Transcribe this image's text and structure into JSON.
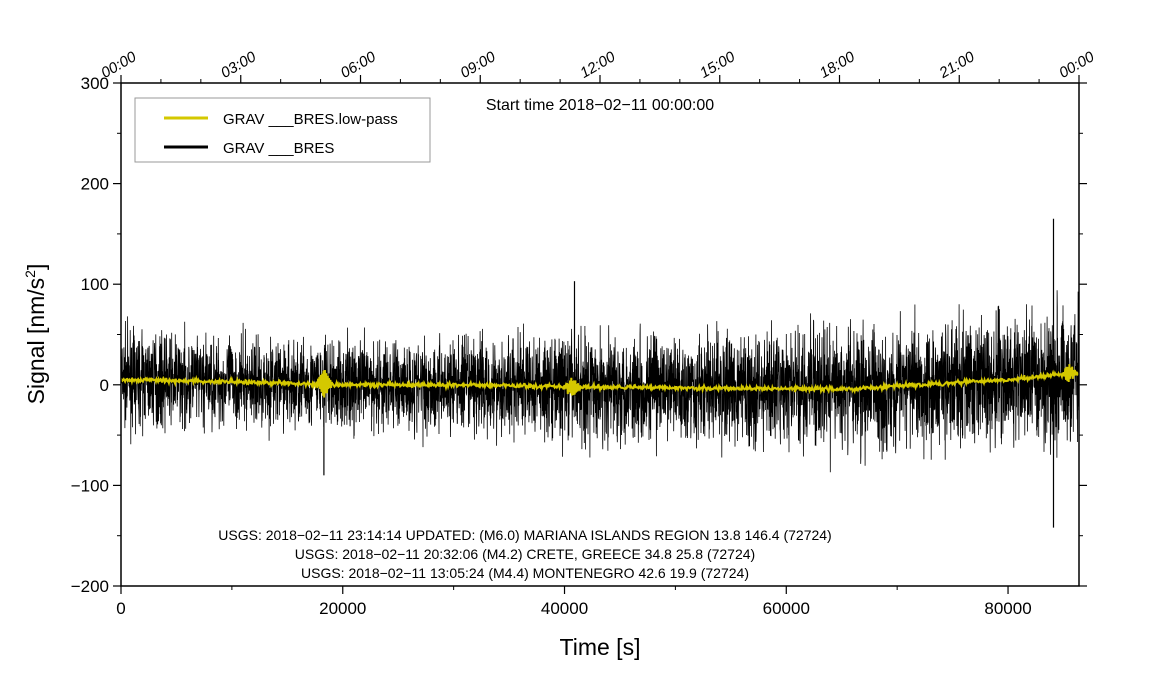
{
  "chart_data": {
    "type": "line",
    "xlabel": "Time [s]",
    "ylabel_main": "Signal [nm/s",
    "ylabel_sup": "2",
    "ylabel_close": "]",
    "xlim": [
      0,
      86400
    ],
    "ylim": [
      -200,
      300
    ],
    "x_ticks": [
      0,
      20000,
      40000,
      60000,
      80000
    ],
    "x_tick_labels": [
      "0",
      "20000",
      "40000",
      "60000",
      "80000"
    ],
    "y_ticks": [
      -200,
      -100,
      0,
      100,
      200,
      300
    ],
    "y_tick_labels": [
      "−200",
      "−100",
      "0",
      "100",
      "200",
      "300"
    ],
    "top_ticks_s": [
      0,
      10800,
      21600,
      32400,
      43200,
      54000,
      64800,
      75600,
      86400
    ],
    "top_tick_labels": [
      "00:00",
      "03:00",
      "06:00",
      "09:00",
      "12:00",
      "15:00",
      "18:00",
      "21:00",
      "00:00"
    ],
    "start_time_label": "Start time 2018−02−11 00:00:00",
    "legend_position": "top-left",
    "series": [
      {
        "name": "GRAV ___BRES",
        "color": "#000000",
        "envelope_x": [
          0,
          10000,
          20000,
          30000,
          40000,
          50000,
          60000,
          70000,
          80000,
          86400
        ],
        "envelope_amplitude": [
          40,
          38,
          40,
          42,
          48,
          48,
          50,
          55,
          55,
          60
        ],
        "spikes": [
          {
            "x": 84100,
            "y": 165
          },
          {
            "x": 84100,
            "y": -142
          },
          {
            "x": 40900,
            "y": 103
          },
          {
            "x": 18300,
            "y": -90
          }
        ]
      },
      {
        "name": "GRAV ___BRES.low-pass",
        "color": "#d4c800",
        "baseline_x": [
          0,
          10000,
          20000,
          30000,
          40000,
          50000,
          60000,
          66000,
          72000,
          80000,
          86400
        ],
        "baseline_y": [
          5,
          3,
          0,
          0,
          -2,
          -3,
          -4,
          -4,
          0,
          5,
          12
        ],
        "bursts": [
          {
            "x": 18300,
            "amp": 16
          },
          {
            "x": 40700,
            "amp": 10
          },
          {
            "x": 85500,
            "amp": 9
          }
        ]
      }
    ],
    "annotations": [
      "USGS: 2018−02−11 23:14:14 UPDATED: (M6.0) MARIANA ISLANDS REGION 13.8 146.4 (72724)",
      "USGS: 2018−02−11 20:32:06 (M4.2) CRETE, GREECE 34.8 25.8 (72724)",
      "USGS: 2018−02−11 13:05:24 (M4.4) MONTENEGRO 42.6 19.9 (72724)"
    ]
  }
}
